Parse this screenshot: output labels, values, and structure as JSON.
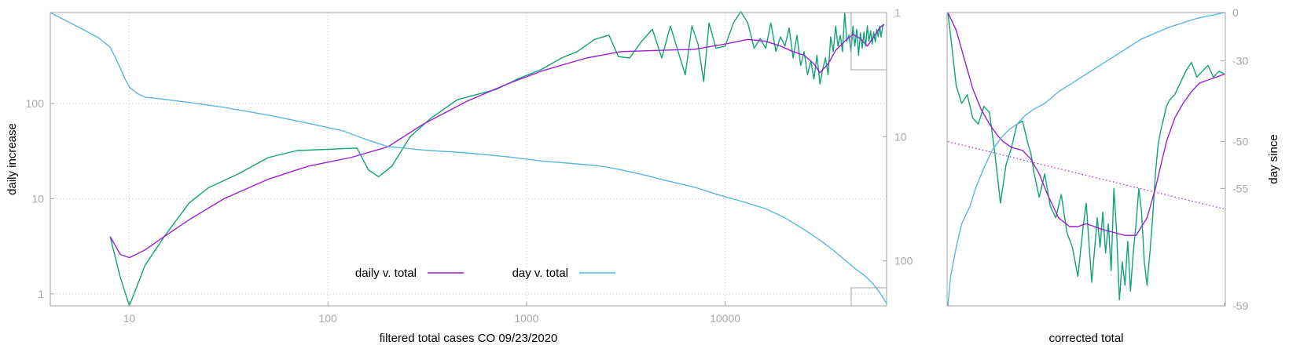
{
  "colors": {
    "green": "#12a27a",
    "purple": "#9b1fd3",
    "blue": "#5ab7e0",
    "frame": "#a0a0a0",
    "tick": "#a8a8a8",
    "grid": "#c8c8c8"
  },
  "chart_data": [
    {
      "type": "line",
      "xlabel": "filtered total cases CO 09/23/2020",
      "ylabel": "daily increase",
      "y2label": "",
      "xscale": "log",
      "yscale": "log",
      "y2scale": "log, reversed",
      "xlim": [
        4,
        65000
      ],
      "ylim": [
        0.75,
        900
      ],
      "y2lim": [
        1,
        230
      ],
      "x_ticks": [
        "10",
        "100",
        "1000",
        "10000"
      ],
      "y_ticks": [
        "1",
        "10",
        "100"
      ],
      "y2_ticks": [
        "1",
        "10",
        "100"
      ],
      "grid": true,
      "legend_position": "bottom-center",
      "legend": [
        "daily v. total",
        "day v. total"
      ],
      "series": [
        {
          "name": "",
          "color": "green",
          "axis": "y",
          "x": [
            8,
            9,
            10,
            12,
            15,
            20,
            25,
            35,
            50,
            70,
            100,
            140,
            160,
            180,
            210,
            260,
            330,
            450,
            700,
            900,
            1200,
            1500,
            1800,
            2200,
            2600,
            2900,
            3300,
            3800,
            4300,
            4800,
            5300,
            5800,
            6300,
            6800,
            7300,
            7800,
            8300,
            9000,
            10000,
            11000,
            12000,
            13000,
            14000,
            15000,
            16000,
            17000,
            18000,
            19000,
            20000,
            21000,
            22000,
            23000,
            24000,
            25000,
            26000,
            27000,
            28000,
            29000,
            30000,
            31000,
            32000,
            33000,
            34000,
            35000,
            36000,
            37000,
            38000,
            39000,
            40000,
            41000,
            42000,
            43000,
            44000,
            45000,
            46000,
            47000,
            48000,
            49000,
            50000,
            51000,
            52000,
            53000,
            54000,
            55000,
            56000,
            57000,
            58000,
            59000,
            60000,
            61000,
            62000,
            63000
          ],
          "y": [
            4,
            1.5,
            0.75,
            2,
            4,
            9,
            13,
            18,
            27,
            32,
            33,
            34,
            20,
            17,
            22,
            45,
            70,
            110,
            140,
            180,
            230,
            300,
            350,
            470,
            520,
            310,
            300,
            450,
            600,
            300,
            650,
            350,
            200,
            650,
            420,
            170,
            700,
            380,
            400,
            700,
            920,
            700,
            380,
            480,
            380,
            700,
            350,
            500,
            400,
            620,
            300,
            520,
            250,
            350,
            200,
            280,
            180,
            320,
            160,
            230,
            300,
            200,
            500,
            350,
            650,
            400,
            520,
            350,
            900,
            450,
            520,
            350,
            650,
            400,
            600,
            320,
            550,
            380,
            560,
            400,
            650,
            450,
            580,
            420,
            560,
            440,
            600,
            500,
            650,
            500,
            630,
            680
          ]
        },
        {
          "name": "daily v. total",
          "color": "purple",
          "axis": "y",
          "x": [
            8,
            9,
            10,
            12,
            15,
            20,
            30,
            50,
            80,
            130,
            200,
            300,
            500,
            800,
            1200,
            2000,
            3000,
            4500,
            7000,
            10000,
            13000,
            16000,
            19000,
            22000,
            25000,
            28000,
            30000,
            33000,
            36000,
            40000,
            44000,
            48000,
            52000,
            56000,
            60000,
            63000
          ],
          "y": [
            4,
            2.6,
            2.4,
            2.9,
            4,
            6,
            10,
            16,
            22,
            27,
            35,
            60,
            105,
            160,
            220,
            300,
            350,
            360,
            370,
            420,
            470,
            450,
            400,
            350,
            320,
            260,
            210,
            260,
            360,
            450,
            530,
            480,
            400,
            500,
            620,
            680
          ]
        },
        {
          "name": "day v. total",
          "color": "blue",
          "axis": "y2",
          "x": [
            4,
            6,
            7,
            8,
            8.5,
            9,
            9.5,
            10,
            11,
            12,
            15,
            20,
            30,
            50,
            80,
            120,
            150,
            200,
            300,
            500,
            800,
            1200,
            2000,
            2500,
            3000,
            4000,
            5000,
            7000,
            9000,
            12000,
            16000,
            20000,
            25000,
            30000,
            35000,
            40000,
            45000,
            50000,
            55000,
            60000,
            65000
          ],
          "y": [
            1,
            1.4,
            1.6,
            1.9,
            2.3,
            2.8,
            3.4,
            4,
            4.5,
            4.8,
            5,
            5.3,
            5.8,
            6.7,
            7.8,
            9,
            10.3,
            12,
            12.8,
            13.5,
            14.5,
            15.7,
            16.8,
            17.5,
            18.5,
            20.5,
            22.5,
            25.5,
            29,
            33,
            38,
            45,
            56,
            68,
            82,
            98,
            115,
            130,
            150,
            180,
            220
          ]
        }
      ]
    },
    {
      "type": "line",
      "xlabel": "corrected total",
      "ylabel": "",
      "y2label": "day since",
      "y2_ticks": [
        "0",
        "-30",
        "-50",
        "-55",
        "-59"
      ],
      "grid": false,
      "series": [
        {
          "name": "",
          "color": "green",
          "style": "solid",
          "x": [
            0,
            0.01,
            0.03,
            0.05,
            0.07,
            0.09,
            0.11,
            0.13,
            0.15,
            0.17,
            0.19,
            0.21,
            0.23,
            0.25,
            0.27,
            0.29,
            0.3,
            0.31,
            0.33,
            0.35,
            0.37,
            0.39,
            0.41,
            0.43,
            0.45,
            0.47,
            0.49,
            0.5,
            0.52,
            0.54,
            0.55,
            0.56,
            0.57,
            0.58,
            0.59,
            0.6,
            0.61,
            0.62,
            0.63,
            0.64,
            0.65,
            0.66,
            0.67,
            0.68,
            0.69,
            0.7,
            0.71,
            0.72,
            0.73,
            0.74,
            0.75,
            0.76,
            0.77,
            0.78,
            0.79,
            0.8,
            0.82,
            0.84,
            0.86,
            0.88,
            0.9,
            0.92,
            0.94,
            0.96,
            0.98,
            1
          ],
          "y": [
            0.0,
            0.08,
            0.25,
            0.31,
            0.28,
            0.36,
            0.38,
            0.32,
            0.34,
            0.48,
            0.65,
            0.52,
            0.46,
            0.38,
            0.37,
            0.45,
            0.48,
            0.54,
            0.63,
            0.55,
            0.66,
            0.7,
            0.62,
            0.75,
            0.8,
            0.9,
            0.72,
            0.65,
            0.92,
            0.7,
            0.8,
            0.68,
            0.82,
            0.72,
            0.88,
            0.6,
            0.75,
            0.98,
            0.85,
            0.93,
            0.78,
            0.95,
            0.82,
            0.72,
            0.6,
            0.68,
            0.85,
            0.93,
            0.82,
            0.7,
            0.55,
            0.45,
            0.4,
            0.36,
            0.32,
            0.3,
            0.28,
            0.24,
            0.2,
            0.17,
            0.22,
            0.2,
            0.18,
            0.22,
            0.2,
            0.21
          ]
        },
        {
          "name": "",
          "color": "purple",
          "style": "solid",
          "x": [
            0,
            0.03,
            0.06,
            0.09,
            0.12,
            0.15,
            0.18,
            0.2,
            0.23,
            0.27,
            0.3,
            0.33,
            0.36,
            0.4,
            0.44,
            0.47,
            0.5,
            0.53,
            0.56,
            0.6,
            0.64,
            0.68,
            0.72,
            0.75,
            0.77,
            0.79,
            0.82,
            0.85,
            0.88,
            0.91,
            0.94,
            0.97,
            1
          ],
          "y": [
            0.0,
            0.06,
            0.16,
            0.26,
            0.33,
            0.38,
            0.42,
            0.44,
            0.46,
            0.47,
            0.5,
            0.55,
            0.62,
            0.7,
            0.73,
            0.73,
            0.72,
            0.73,
            0.74,
            0.75,
            0.76,
            0.76,
            0.7,
            0.6,
            0.52,
            0.44,
            0.36,
            0.31,
            0.27,
            0.24,
            0.23,
            0.22,
            0.21
          ]
        },
        {
          "name": "",
          "color": "purple",
          "style": "dotted",
          "x": [
            0,
            1
          ],
          "y": [
            0.44,
            0.67
          ]
        },
        {
          "name": "",
          "color": "blue",
          "style": "solid",
          "x": [
            0,
            0.01,
            0.03,
            0.05,
            0.08,
            0.1,
            0.13,
            0.16,
            0.19,
            0.22,
            0.25,
            0.28,
            0.31,
            0.35,
            0.4,
            0.45,
            0.5,
            0.55,
            0.6,
            0.65,
            0.7,
            0.75,
            0.8,
            0.85,
            0.9,
            0.95,
            1
          ],
          "y": [
            1.0,
            0.9,
            0.8,
            0.72,
            0.66,
            0.6,
            0.53,
            0.47,
            0.43,
            0.4,
            0.38,
            0.35,
            0.33,
            0.31,
            0.27,
            0.24,
            0.21,
            0.18,
            0.15,
            0.12,
            0.09,
            0.07,
            0.05,
            0.035,
            0.02,
            0.01,
            0.0
          ]
        }
      ]
    }
  ]
}
